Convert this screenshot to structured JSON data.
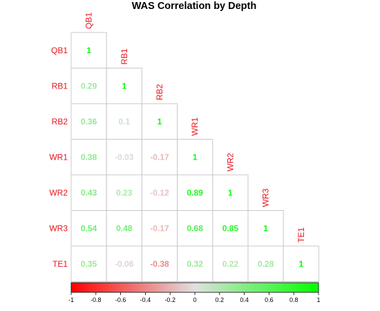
{
  "chart_data": {
    "type": "heatmap",
    "subtype": "lower-triangle correlation matrix",
    "title": "WAS Correlation by Depth",
    "variables": [
      "QB1",
      "RB1",
      "RB2",
      "WR1",
      "WR2",
      "WR3",
      "TE1"
    ],
    "matrix": [
      [
        1,
        null,
        null,
        null,
        null,
        null,
        null
      ],
      [
        0.29,
        1,
        null,
        null,
        null,
        null,
        null
      ],
      [
        0.36,
        0.1,
        1,
        null,
        null,
        null,
        null
      ],
      [
        0.38,
        -0.03,
        -0.17,
        1,
        null,
        null,
        null
      ],
      [
        0.43,
        0.23,
        -0.12,
        0.89,
        1,
        null,
        null
      ],
      [
        0.54,
        0.48,
        -0.17,
        0.68,
        0.85,
        1,
        null
      ],
      [
        0.35,
        -0.06,
        -0.38,
        0.32,
        0.22,
        0.28,
        1
      ]
    ],
    "colorbar": {
      "range": [
        -1,
        1
      ],
      "ticks": [
        -1,
        -0.8,
        -0.6,
        -0.4,
        -0.2,
        0,
        0.2,
        0.4,
        0.6,
        0.8,
        1
      ],
      "tick_labels": [
        "-1",
        "-0.8",
        "-0.6",
        "-0.4",
        "-0.2",
        "0",
        "0.2",
        "0.4",
        "0.6",
        "0.8",
        "1"
      ],
      "colors": {
        "low": "#ff0000",
        "mid": "#e0e0e0",
        "high": "#00ff00"
      }
    },
    "label_color": "#e8141c",
    "grid": true
  }
}
